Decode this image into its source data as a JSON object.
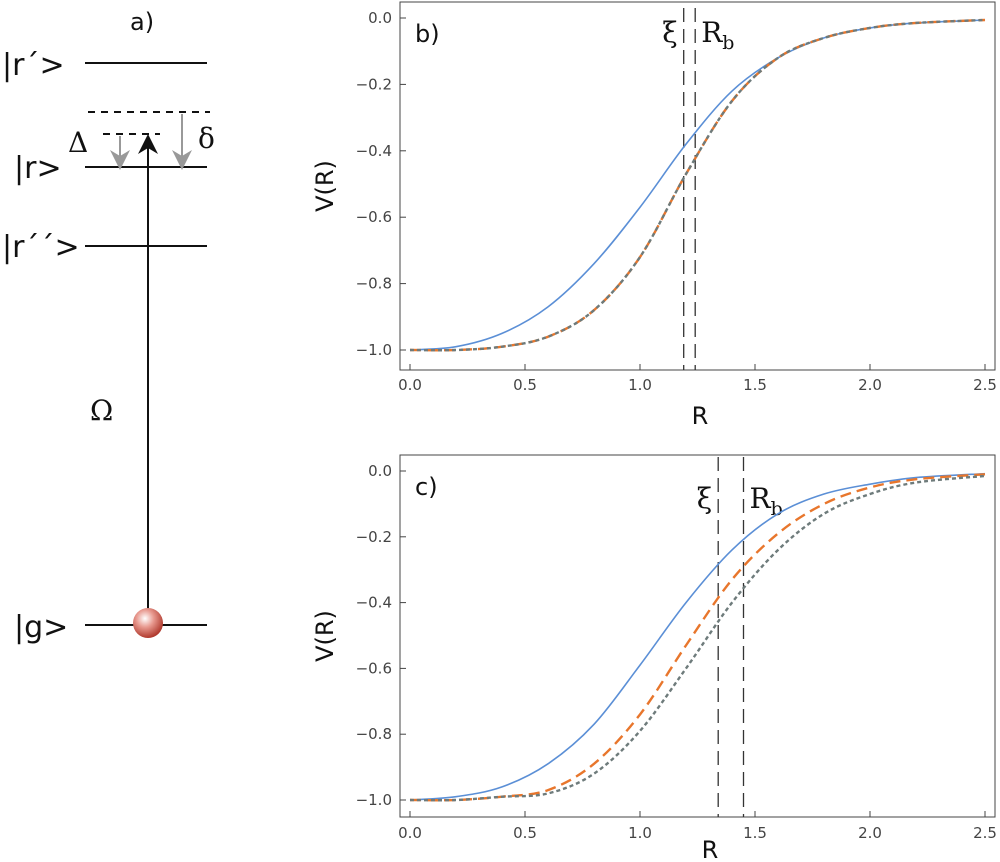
{
  "diagram": {
    "panel_label": "a)",
    "levels": [
      {
        "name": "r_prime",
        "label": "|r´>"
      },
      {
        "name": "r",
        "label": "|r>"
      },
      {
        "name": "r_double_prime",
        "label": "|r´´>"
      },
      {
        "name": "g",
        "label": "|g>"
      }
    ],
    "symbols": {
      "Delta": "Δ",
      "delta": "δ",
      "Omega": "Ω"
    },
    "colors": {
      "line": "#111111",
      "shift_arrow": "#999999",
      "atom": "#c0392b"
    }
  },
  "chart_data": [
    {
      "type": "line",
      "panel_label": "b)",
      "xlabel": "R",
      "ylabel": "V(R)",
      "xlim": [
        0,
        2.5
      ],
      "ylim": [
        -1.0,
        0.0
      ],
      "xticks": [
        "0.0",
        "0.5",
        "1.0",
        "1.5",
        "2.0",
        "2.5"
      ],
      "yticks": [
        "0.0",
        "−0.2",
        "−0.4",
        "−0.6",
        "−0.8",
        "−1.0"
      ],
      "markers": [
        {
          "label": "ξ",
          "x": 1.19
        },
        {
          "label": "R",
          "subscript": "b",
          "x": 1.24
        }
      ],
      "series": [
        {
          "color": "#5b8fd6",
          "style": "solid",
          "x": [
            0,
            0.2,
            0.4,
            0.6,
            0.8,
            1.0,
            1.2,
            1.4,
            1.6,
            1.8,
            2.0,
            2.2,
            2.5
          ],
          "y": [
            -1.0,
            -0.99,
            -0.95,
            -0.87,
            -0.74,
            -0.57,
            -0.38,
            -0.22,
            -0.12,
            -0.06,
            -0.03,
            -0.015,
            -0.006
          ]
        },
        {
          "color": "#e8762c",
          "style": "dashed",
          "x": [
            0,
            0.2,
            0.4,
            0.6,
            0.8,
            1.0,
            1.2,
            1.4,
            1.6,
            1.8,
            2.0,
            2.2,
            2.5
          ],
          "y": [
            -1.0,
            -1.0,
            -0.99,
            -0.96,
            -0.88,
            -0.72,
            -0.47,
            -0.25,
            -0.12,
            -0.06,
            -0.03,
            -0.015,
            -0.006
          ]
        },
        {
          "color": "#6e7b7b",
          "style": "dotted",
          "x": [
            0,
            0.2,
            0.4,
            0.6,
            0.8,
            1.0,
            1.2,
            1.4,
            1.6,
            1.8,
            2.0,
            2.2,
            2.5
          ],
          "y": [
            -1.0,
            -1.0,
            -0.99,
            -0.96,
            -0.88,
            -0.72,
            -0.47,
            -0.25,
            -0.12,
            -0.06,
            -0.03,
            -0.015,
            -0.006
          ]
        }
      ],
      "grid": false
    },
    {
      "type": "line",
      "panel_label": "c)",
      "xlabel": "R",
      "ylabel": "V(R)",
      "xlim": [
        0,
        2.5
      ],
      "ylim": [
        -1.0,
        0.0
      ],
      "xticks": [
        "0.0",
        "0.5",
        "1.0",
        "1.5",
        "2.0",
        "2.5"
      ],
      "yticks": [
        "0.0",
        "−0.2",
        "−0.4",
        "−0.6",
        "−0.8",
        "−1.0"
      ],
      "markers": [
        {
          "label": "ξ",
          "x": 1.34
        },
        {
          "label": "R",
          "subscript": "b",
          "x": 1.45
        }
      ],
      "series": [
        {
          "color": "#5b8fd6",
          "style": "solid",
          "x": [
            0,
            0.2,
            0.4,
            0.6,
            0.8,
            1.0,
            1.2,
            1.4,
            1.6,
            1.8,
            2.0,
            2.2,
            2.5
          ],
          "y": [
            -1.0,
            -0.99,
            -0.96,
            -0.89,
            -0.77,
            -0.59,
            -0.4,
            -0.24,
            -0.13,
            -0.07,
            -0.04,
            -0.02,
            -0.008
          ]
        },
        {
          "color": "#e8762c",
          "style": "dashed",
          "x": [
            0,
            0.2,
            0.4,
            0.6,
            0.8,
            1.0,
            1.2,
            1.4,
            1.6,
            1.8,
            2.0,
            2.2,
            2.5
          ],
          "y": [
            -1.0,
            -1.0,
            -0.99,
            -0.97,
            -0.89,
            -0.74,
            -0.53,
            -0.33,
            -0.19,
            -0.1,
            -0.05,
            -0.025,
            -0.01
          ]
        },
        {
          "color": "#6e7b7b",
          "style": "dotted",
          "x": [
            0,
            0.2,
            0.4,
            0.6,
            0.8,
            1.0,
            1.2,
            1.4,
            1.6,
            1.8,
            2.0,
            2.2,
            2.5
          ],
          "y": [
            -1.0,
            -1.0,
            -0.99,
            -0.98,
            -0.92,
            -0.79,
            -0.6,
            -0.4,
            -0.24,
            -0.13,
            -0.07,
            -0.035,
            -0.015
          ]
        }
      ],
      "grid": false
    }
  ]
}
